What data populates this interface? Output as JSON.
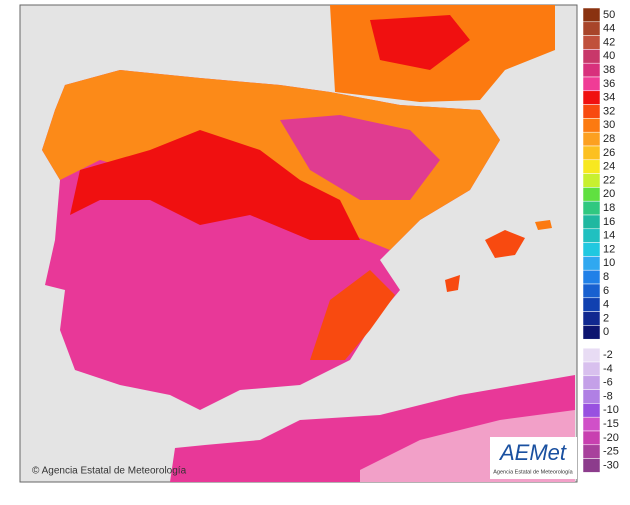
{
  "copyright": "© Agencia Estatal de Meteorología",
  "logo": {
    "name": "AEMet",
    "subtitle": "Agencia Estatal de Meteorología"
  },
  "legend": {
    "labels": [
      50,
      44,
      42,
      40,
      38,
      36,
      34,
      32,
      30,
      28,
      26,
      24,
      22,
      20,
      18,
      16,
      14,
      12,
      10,
      8,
      6,
      4,
      2,
      0,
      -2,
      -4,
      -6,
      -8,
      -10,
      -15,
      -20,
      -25,
      -30
    ],
    "colors": [
      "#8a3210",
      "#a8452a",
      "#c0503c",
      "#c8386a",
      "#d8307c",
      "#f03c96",
      "#f01010",
      "#f84a10",
      "#fc7a10",
      "#fca020",
      "#fcc020",
      "#f8e820",
      "#c8f030",
      "#60e040",
      "#30c880",
      "#20b8a0",
      "#20c0c0",
      "#20c8e0",
      "#30a8f0",
      "#2080e8",
      "#1860d0",
      "#1040b0",
      "#102890",
      "#0c1470",
      "#e8dcf4",
      "#d8c0ee",
      "#c4a0e8",
      "#b080e4",
      "#9850e0",
      "#d050c8",
      "#c840b0",
      "#a8409c",
      "#8c3c8c"
    ]
  }
}
